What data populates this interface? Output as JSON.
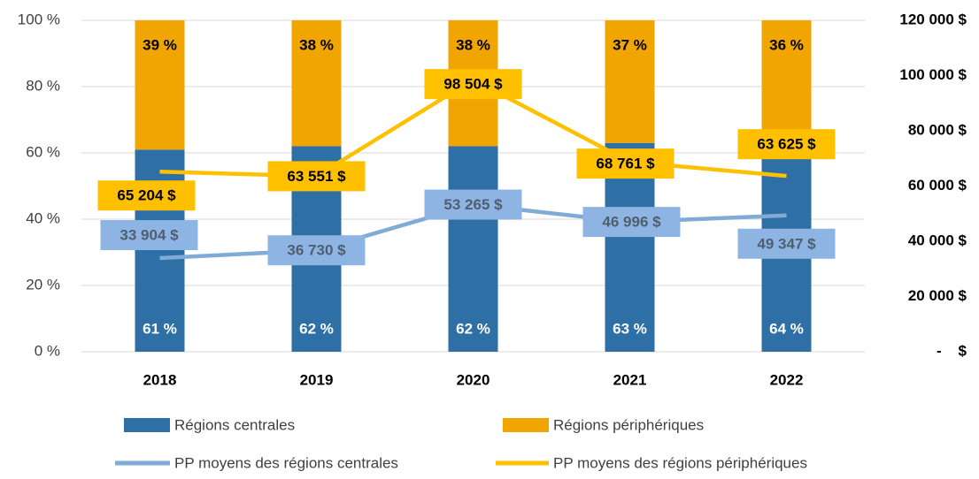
{
  "chart_data": {
    "type": "bar-line",
    "categories": [
      "2018",
      "2019",
      "2020",
      "2021",
      "2022"
    ],
    "series": [
      {
        "name": "Régions centrales",
        "type": "bar",
        "color": "#2e6fa6",
        "values": [
          61,
          62,
          62,
          63,
          64
        ],
        "value_labels": [
          "61 %",
          "62 %",
          "62 %",
          "63 %",
          "64 %"
        ]
      },
      {
        "name": "Régions périphériques",
        "type": "bar",
        "color": "#f0a500",
        "values": [
          39,
          38,
          38,
          37,
          36
        ],
        "value_labels": [
          "39 %",
          "38 %",
          "38 %",
          "37 %",
          "36 %"
        ]
      },
      {
        "name": "PP moyens des régions centrales",
        "type": "line",
        "axis": "y2",
        "color": "#7fabd6",
        "values": [
          33904,
          36730,
          53265,
          46996,
          49347
        ],
        "value_labels": [
          "33 904 $",
          "36 730 $",
          "53 265 $",
          "46 996 $",
          "49 347 $"
        ]
      },
      {
        "name": "PP moyens des régions périphériques",
        "type": "line",
        "axis": "y2",
        "color": "#ffc000",
        "values": [
          65204,
          63551,
          98504,
          68761,
          63625
        ],
        "value_labels": [
          "65 204 $",
          "63 551 $",
          "98 504 $",
          "68 761 $",
          "63 625 $"
        ]
      }
    ],
    "ylim": [
      0,
      100
    ],
    "yticks": [
      {
        "value": 0,
        "label": "0 %"
      },
      {
        "value": 20,
        "label": "20 %"
      },
      {
        "value": 40,
        "label": "40 %"
      },
      {
        "value": 60,
        "label": "60 %"
      },
      {
        "value": 80,
        "label": "80 %"
      },
      {
        "value": 100,
        "label": "100 %"
      }
    ],
    "y2lim": [
      0,
      120000
    ],
    "y2ticks": [
      {
        "value": 0,
        "label": "-    $"
      },
      {
        "value": 20000,
        "label": "20 000 $"
      },
      {
        "value": 40000,
        "label": "40 000 $"
      },
      {
        "value": 60000,
        "label": "60 000 $"
      },
      {
        "value": 80000,
        "label": "80 000 $"
      },
      {
        "value": 100000,
        "label": "100 000 $"
      },
      {
        "value": 120000,
        "label": "120 000 $"
      }
    ],
    "grid": true
  }
}
